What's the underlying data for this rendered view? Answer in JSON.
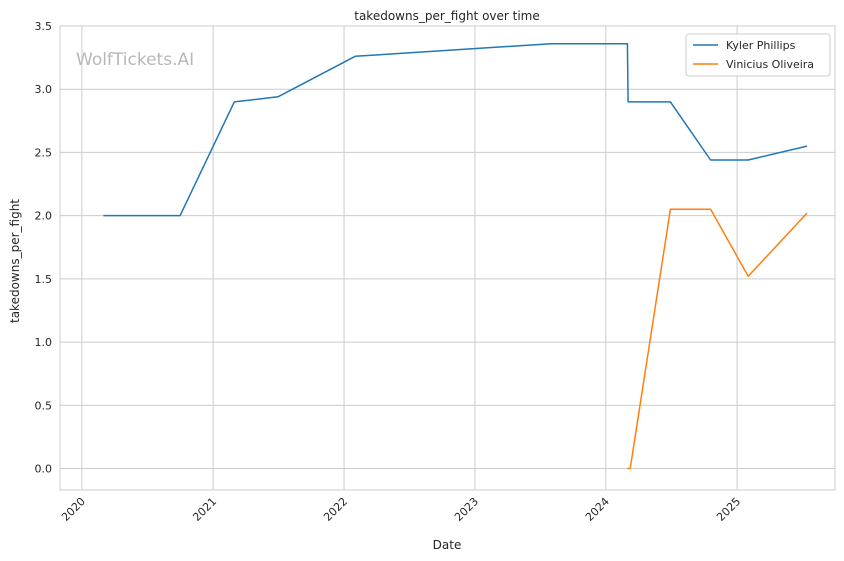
{
  "chart_data": {
    "type": "line",
    "title": "takedowns_per_fight over time",
    "xlabel": "Date",
    "ylabel": "takedowns_per_fight",
    "watermark": "WolfTickets.AI",
    "xlim": [
      "2019-11-01",
      "2025-10-01"
    ],
    "ylim": [
      -0.17,
      3.5
    ],
    "x_ticks": [
      "2020-01-01",
      "2021-01-01",
      "2022-01-01",
      "2023-01-01",
      "2024-01-01",
      "2025-01-01"
    ],
    "x_tick_labels": [
      "2020",
      "2021",
      "2022",
      "2023",
      "2024",
      "2025"
    ],
    "y_ticks": [
      0.0,
      0.5,
      1.0,
      1.5,
      2.0,
      2.5,
      3.0,
      3.5
    ],
    "y_tick_labels": [
      "0.0",
      "0.5",
      "1.0",
      "1.5",
      "2.0",
      "2.5",
      "3.0",
      "3.5"
    ],
    "grid": true,
    "legend_position": "top-right",
    "series": [
      {
        "name": "Kyler Phillips",
        "color": "#1f77b4",
        "points": [
          {
            "x": "2020-03-01",
            "y": 2.0
          },
          {
            "x": "2020-10-01",
            "y": 2.0
          },
          {
            "x": "2021-03-01",
            "y": 2.9
          },
          {
            "x": "2021-07-01",
            "y": 2.94
          },
          {
            "x": "2022-02-01",
            "y": 3.26
          },
          {
            "x": "2023-08-01",
            "y": 3.36
          },
          {
            "x": "2024-03-01",
            "y": 3.36
          },
          {
            "x": "2024-03-03",
            "y": 2.9
          },
          {
            "x": "2024-06-29",
            "y": 2.9
          },
          {
            "x": "2024-10-19",
            "y": 2.44
          },
          {
            "x": "2025-02-01",
            "y": 2.44
          },
          {
            "x": "2025-07-15",
            "y": 2.55
          }
        ]
      },
      {
        "name": "Vinicius Oliveira",
        "color": "#ff7f0e",
        "points": [
          {
            "x": "2024-03-01",
            "y": 0.0
          },
          {
            "x": "2024-03-09",
            "y": 0.0
          },
          {
            "x": "2024-06-29",
            "y": 2.05
          },
          {
            "x": "2024-10-19",
            "y": 2.05
          },
          {
            "x": "2025-02-01",
            "y": 1.52
          },
          {
            "x": "2025-07-15",
            "y": 2.02
          }
        ]
      }
    ]
  }
}
